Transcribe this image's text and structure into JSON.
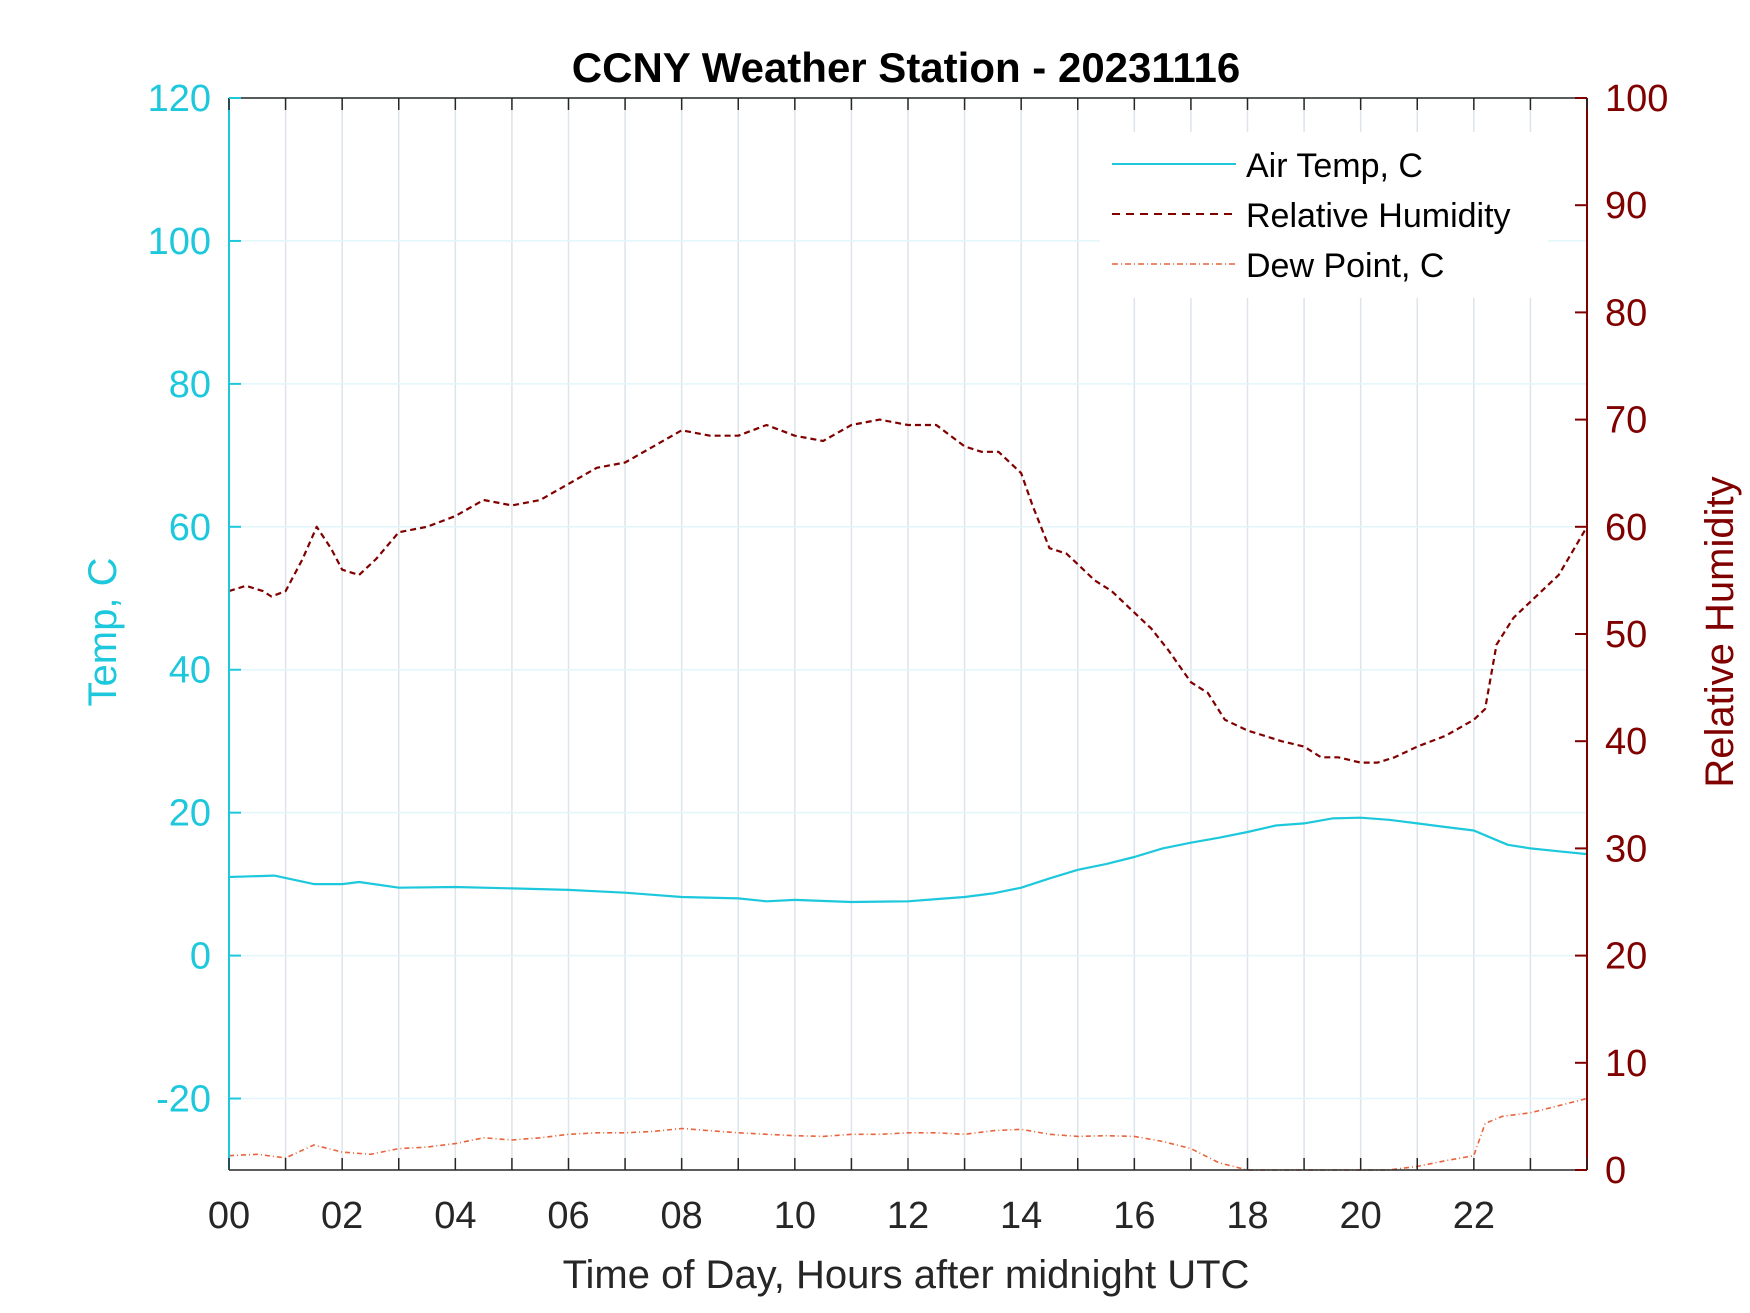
{
  "chart_data": {
    "type": "line",
    "title": "CCNY Weather Station - 20231116",
    "xlabel": "Time of Day, Hours after midnight UTC",
    "ylabel_left": "Temp, C",
    "ylabel_right": "Relative Humidity",
    "xlim": [
      0,
      24
    ],
    "ylim_left": [
      -30,
      120
    ],
    "ylim_right": [
      0,
      100
    ],
    "x_ticks": [
      0,
      2,
      4,
      6,
      8,
      10,
      12,
      14,
      16,
      18,
      20,
      22
    ],
    "x_tick_labels": [
      "00",
      "02",
      "04",
      "06",
      "08",
      "10",
      "12",
      "14",
      "16",
      "18",
      "20",
      "22"
    ],
    "y_left_ticks": [
      -20,
      0,
      20,
      40,
      60,
      80,
      100,
      120
    ],
    "y_left_tick_labels": [
      "-20",
      "0",
      "20",
      "40",
      "60",
      "80",
      "100",
      "120"
    ],
    "y_right_ticks": [
      0,
      10,
      20,
      30,
      40,
      50,
      60,
      70,
      80,
      90,
      100
    ],
    "y_right_tick_labels": [
      "0",
      "10",
      "20",
      "30",
      "40",
      "50",
      "60",
      "70",
      "80",
      "90",
      "100"
    ],
    "grid": "vertical every hour, horizontal at left ticks",
    "legend_position": "top-right",
    "colors": {
      "left_axis": "#1ec8dc",
      "right_axis": "#800000",
      "air_temp": "#1ec8dc",
      "humidity": "#800000",
      "dew_point": "#e8643c",
      "grid": "#dde4ea",
      "hgrid": "#e1f6fb"
    },
    "series": [
      {
        "name": "Air Temp, C",
        "axis": "left",
        "style": "solid",
        "x": [
          0,
          0.8,
          1.5,
          2,
          2.3,
          3,
          4,
          5,
          6,
          7,
          8,
          9,
          9.5,
          10,
          11,
          12,
          12.5,
          13,
          13.5,
          14,
          14.5,
          15,
          15.5,
          16,
          16.5,
          17,
          17.5,
          18,
          18.5,
          19,
          19.5,
          20,
          20.5,
          21,
          21.5,
          22,
          22.3,
          22.6,
          23,
          23.5,
          24
        ],
        "values": [
          11.0,
          11.2,
          10.0,
          10.0,
          10.3,
          9.5,
          9.6,
          9.4,
          9.2,
          8.8,
          8.2,
          8.0,
          7.6,
          7.8,
          7.5,
          7.6,
          7.9,
          8.2,
          8.7,
          9.5,
          10.8,
          12.0,
          12.8,
          13.8,
          15.0,
          15.8,
          16.5,
          17.3,
          18.2,
          18.5,
          19.2,
          19.3,
          19.0,
          18.5,
          18.0,
          17.5,
          16.5,
          15.5,
          15.0,
          14.6,
          14.2
        ]
      },
      {
        "name": "Relative Humidity",
        "axis": "right",
        "style": "dashed",
        "x": [
          0,
          0.3,
          0.6,
          0.75,
          1,
          1.3,
          1.55,
          1.8,
          2,
          2.3,
          2.6,
          3,
          3.5,
          4,
          4.5,
          5,
          5.5,
          6,
          6.5,
          7,
          7.5,
          8,
          8.5,
          9,
          9.5,
          10,
          10.5,
          11,
          11.5,
          12,
          12.5,
          13,
          13.3,
          13.6,
          14,
          14.2,
          14.5,
          14.8,
          15,
          15.3,
          15.6,
          16,
          16.3,
          16.6,
          17,
          17.3,
          17.6,
          18,
          18.3,
          18.6,
          19,
          19.3,
          19.6,
          20,
          20.3,
          20.6,
          21,
          21.5,
          22,
          22.2,
          22.4,
          22.7,
          23,
          23.5,
          24
        ],
        "values": [
          54,
          54.5,
          54,
          53.5,
          54,
          57,
          60,
          58,
          56,
          55.5,
          57,
          59.5,
          60,
          61,
          62.5,
          62,
          62.5,
          64,
          65.5,
          66,
          67.5,
          69,
          68.5,
          68.5,
          69.5,
          68.5,
          68,
          69.5,
          70,
          69.5,
          69.5,
          67.5,
          67,
          67,
          65,
          62,
          58,
          57.5,
          56.5,
          55,
          54,
          52,
          50.5,
          48.5,
          45.5,
          44.5,
          42,
          41,
          40.5,
          40,
          39.5,
          38.5,
          38.5,
          38,
          38,
          38.5,
          39.5,
          40.5,
          42,
          43,
          49,
          51.5,
          53,
          55.5,
          60
        ]
      },
      {
        "name": "Dew Point, C",
        "axis": "left",
        "style": "dashdot",
        "x": [
          0,
          0.5,
          1,
          1.5,
          2,
          2.5,
          3,
          3.5,
          4,
          4.5,
          5,
          5.5,
          6,
          6.5,
          7,
          7.5,
          8,
          8.5,
          9,
          9.5,
          10,
          10.5,
          11,
          11.5,
          12,
          12.5,
          13,
          13.5,
          14,
          14.5,
          15,
          15.5,
          16,
          16.5,
          17,
          17.5,
          18,
          18.5,
          19,
          19.5,
          20,
          20.5,
          21,
          21.5,
          22,
          22.2,
          22.5,
          23,
          23.5,
          24
        ],
        "values": [
          -28.0,
          -27.8,
          -28.3,
          -26.5,
          -27.5,
          -27.8,
          -27.0,
          -26.8,
          -26.3,
          -25.5,
          -25.8,
          -25.5,
          -25.0,
          -24.8,
          -24.8,
          -24.6,
          -24.2,
          -24.5,
          -24.8,
          -25.0,
          -25.2,
          -25.3,
          -25.0,
          -25.0,
          -24.8,
          -24.8,
          -25.0,
          -24.5,
          -24.3,
          -25.0,
          -25.3,
          -25.2,
          -25.3,
          -26.0,
          -27.0,
          -29.0,
          -30.0,
          -30.2,
          -30.4,
          -30.2,
          -30.0,
          -30.1,
          -29.5,
          -28.7,
          -28.0,
          -23.5,
          -22.5,
          -22.0,
          -21.0,
          -20.0
        ]
      }
    ]
  }
}
